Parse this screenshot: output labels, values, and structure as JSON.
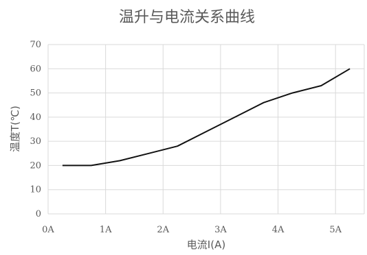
{
  "chart_data": {
    "type": "line",
    "title": "温升与电流关系曲线",
    "xlabel": "电流I(A)",
    "ylabel": "温度T(℃)",
    "x_tick_labels": [
      "0A",
      "1A",
      "2A",
      "3A",
      "4A",
      "5A"
    ],
    "y_tick_labels": [
      "0",
      "10",
      "20",
      "30",
      "40",
      "50",
      "60",
      "70"
    ],
    "xlim": [
      0,
      5.5
    ],
    "ylim": [
      0,
      70
    ],
    "grid": true,
    "legend": "none",
    "series": [
      {
        "color": "#111111",
        "x": [
          0.25,
          0.75,
          1.25,
          1.75,
          2.25,
          2.75,
          3.25,
          3.75,
          4.25,
          4.75,
          5.25
        ],
        "y": [
          20,
          20,
          22,
          25,
          28,
          34,
          40,
          46,
          50,
          53,
          60
        ]
      }
    ]
  }
}
